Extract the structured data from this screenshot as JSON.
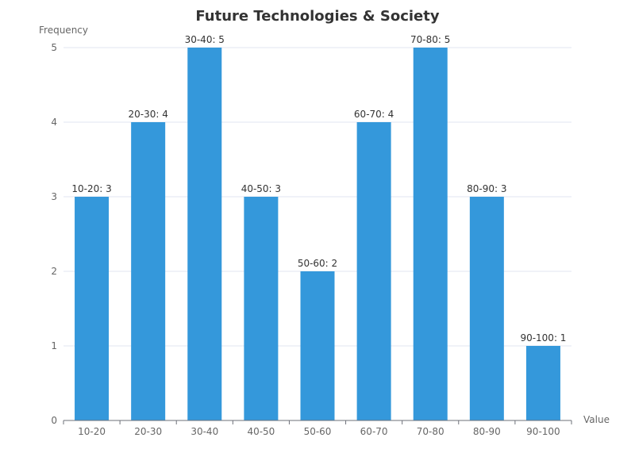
{
  "chart_data": {
    "type": "bar",
    "title": "Future Technologies & Society",
    "xlabel": "Value",
    "ylabel": "Frequency",
    "categories": [
      "10-20",
      "20-30",
      "30-40",
      "40-50",
      "50-60",
      "60-70",
      "70-80",
      "80-90",
      "90-100"
    ],
    "values": [
      3,
      4,
      5,
      3,
      2,
      4,
      5,
      3,
      1
    ],
    "data_labels": [
      "10-20: 3",
      "20-30: 4",
      "30-40: 5",
      "40-50: 3",
      "50-60: 2",
      "60-70: 4",
      "70-80: 5",
      "80-90: 3",
      "90-100: 1"
    ],
    "yticks": [
      "0",
      "1",
      "2",
      "3",
      "4",
      "5"
    ],
    "ylim": [
      0,
      5
    ],
    "grid": true,
    "legend": "none",
    "bar_color": "#3498db",
    "grid_color": "#e0e6f1",
    "axis_color": "#6e7079"
  }
}
